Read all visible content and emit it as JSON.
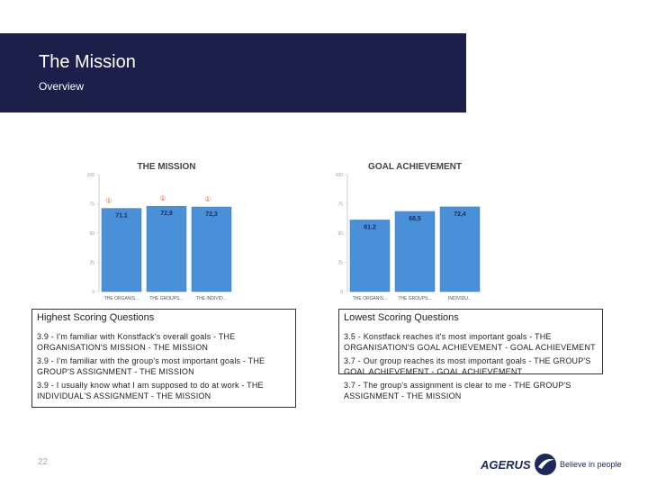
{
  "header": {
    "title": "The Mission",
    "subtitle": "Overview"
  },
  "chart_data": [
    {
      "type": "bar",
      "title": "THE MISSION",
      "categories": [
        "THE ORGANIS...",
        "THE GROUPS...",
        "THE INDIVID..."
      ],
      "values": [
        71.1,
        72.9,
        72.3
      ],
      "data_labels": [
        "71.1",
        "72,9",
        "72,3"
      ],
      "markers": [
        "①",
        "①",
        "①"
      ],
      "ylim": [
        0,
        100
      ],
      "yticks": [
        "0",
        "25",
        "50",
        "75",
        "100"
      ],
      "bar_color": "#4a90d9",
      "grid": false
    },
    {
      "type": "bar",
      "title": "GOAL ACHIEVEMENT",
      "categories": [
        "THE ORGANIS...",
        "THE GROUPS...",
        "INDIVIDU..."
      ],
      "values": [
        61.2,
        68.5,
        72.4
      ],
      "data_labels": [
        "61.2",
        "68,5",
        "72,4"
      ],
      "ylim": [
        0,
        100
      ],
      "yticks": [
        "0",
        "25",
        "50",
        "75",
        "100"
      ],
      "bar_color": "#4a90d9",
      "grid": false
    }
  ],
  "highest": {
    "title": "Highest Scoring Questions",
    "questions": [
      "3.9 - I'm familiar with Konstfack's overall goals - THE ORGANISATION'S MISSION - THE MISSION",
      "3.9 - I'm familiar with the group's most important goals - THE GROUP'S ASSIGNMENT - THE MISSION",
      "3.9 - I usually know what I am supposed to do at work - THE INDIVIDUAL'S ASSIGNMENT - THE MISSION"
    ]
  },
  "lowest": {
    "title": "Lowest Scoring Questions",
    "questions": [
      "3.5 - Konstfack reaches it's most important goals - THE ORGANISATION'S GOAL ACHIEVEMENT - GOAL ACHIEVEMENT",
      "3.7 - Our group reaches its most important goals - THE GROUP'S GOAL ACHIEVEMENT - GOAL ACHIEVEMENT",
      "3.7 - The group's assignment is clear to me - THE GROUP'S ASSIGNMENT - THE MISSION"
    ]
  },
  "footer": {
    "page_number": "22",
    "logo_text": "AGERUS",
    "tagline": "Believe in people"
  }
}
